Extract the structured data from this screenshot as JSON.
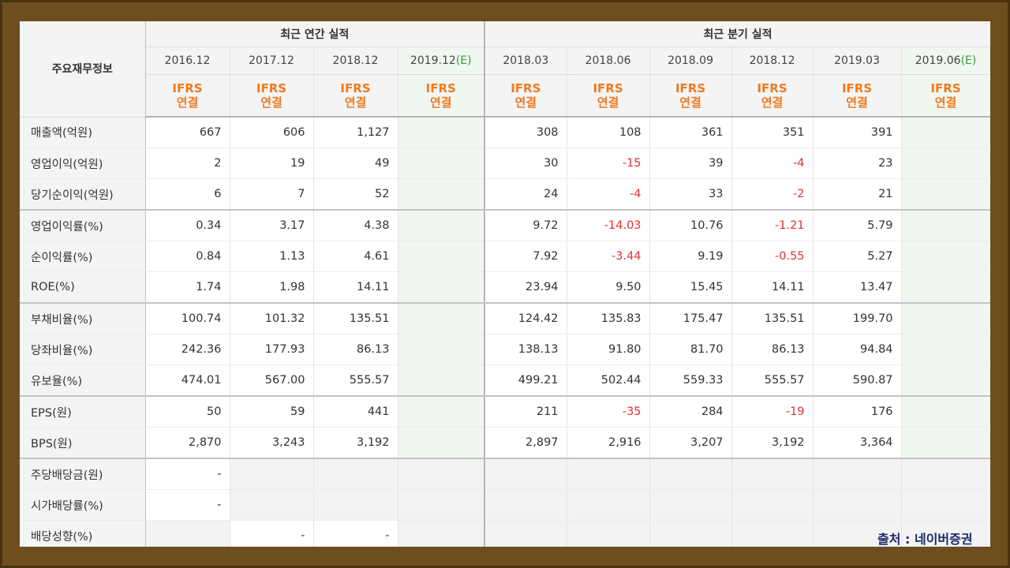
{
  "table": {
    "corner_label": "주요재무정보",
    "annual_header": "최근 연간 실적",
    "quarter_header": "최근 분기 실적",
    "periods": [
      {
        "date": "2016.12",
        "est": "",
        "ifrs": "IFRS",
        "basis": "연결",
        "kind": "annual"
      },
      {
        "date": "2017.12",
        "est": "",
        "ifrs": "IFRS",
        "basis": "연결",
        "kind": "annual"
      },
      {
        "date": "2018.12",
        "est": "",
        "ifrs": "IFRS",
        "basis": "연결",
        "kind": "annual"
      },
      {
        "date": "2019.12",
        "est": "(E)",
        "ifrs": "IFRS",
        "basis": "연결",
        "kind": "annual-est"
      },
      {
        "date": "2018.03",
        "est": "",
        "ifrs": "IFRS",
        "basis": "연결",
        "kind": "quarter"
      },
      {
        "date": "2018.06",
        "est": "",
        "ifrs": "IFRS",
        "basis": "연결",
        "kind": "quarter"
      },
      {
        "date": "2018.09",
        "est": "",
        "ifrs": "IFRS",
        "basis": "연결",
        "kind": "quarter"
      },
      {
        "date": "2018.12",
        "est": "",
        "ifrs": "IFRS",
        "basis": "연결",
        "kind": "quarter"
      },
      {
        "date": "2019.03",
        "est": "",
        "ifrs": "IFRS",
        "basis": "연결",
        "kind": "quarter"
      },
      {
        "date": "2019.06",
        "est": "(E)",
        "ifrs": "IFRS",
        "basis": "연결",
        "kind": "quarter-est"
      }
    ],
    "rows": [
      {
        "label": "매출액(억원)",
        "values": [
          "667",
          "606",
          "1,127",
          "",
          "308",
          "108",
          "361",
          "351",
          "391",
          ""
        ]
      },
      {
        "label": "영업이익(억원)",
        "values": [
          "2",
          "19",
          "49",
          "",
          "30",
          "-15",
          "39",
          "-4",
          "23",
          ""
        ]
      },
      {
        "label": "당기순이익(억원)",
        "values": [
          "6",
          "7",
          "52",
          "",
          "24",
          "-4",
          "33",
          "-2",
          "21",
          ""
        ]
      },
      {
        "label": "영업이익률(%)",
        "values": [
          "0.34",
          "3.17",
          "4.38",
          "",
          "9.72",
          "-14.03",
          "10.76",
          "-1.21",
          "5.79",
          ""
        ]
      },
      {
        "label": "순이익률(%)",
        "values": [
          "0.84",
          "1.13",
          "4.61",
          "",
          "7.92",
          "-3.44",
          "9.19",
          "-0.55",
          "5.27",
          ""
        ]
      },
      {
        "label": "ROE(%)",
        "values": [
          "1.74",
          "1.98",
          "14.11",
          "",
          "23.94",
          "9.50",
          "15.45",
          "14.11",
          "13.47",
          ""
        ]
      },
      {
        "label": "부채비율(%)",
        "values": [
          "100.74",
          "101.32",
          "135.51",
          "",
          "124.42",
          "135.83",
          "175.47",
          "135.51",
          "199.70",
          ""
        ]
      },
      {
        "label": "당좌비율(%)",
        "values": [
          "242.36",
          "177.93",
          "86.13",
          "",
          "138.13",
          "91.80",
          "81.70",
          "86.13",
          "94.84",
          ""
        ]
      },
      {
        "label": "유보율(%)",
        "values": [
          "474.01",
          "567.00",
          "555.57",
          "",
          "499.21",
          "502.44",
          "559.33",
          "555.57",
          "590.87",
          ""
        ]
      },
      {
        "label": "EPS(원)",
        "values": [
          "50",
          "59",
          "441",
          "",
          "211",
          "-35",
          "284",
          "-19",
          "176",
          ""
        ]
      },
      {
        "label": "BPS(원)",
        "values": [
          "2,870",
          "3,243",
          "3,192",
          "",
          "2,897",
          "2,916",
          "3,207",
          "3,192",
          "3,364",
          ""
        ]
      },
      {
        "label": "주당배당금(원)",
        "values": [
          "-",
          "",
          "",
          "",
          "",
          "",
          "",
          "",
          "",
          ""
        ]
      },
      {
        "label": "시가배당률(%)",
        "values": [
          "-",
          "",
          "",
          "",
          "",
          "",
          "",
          "",
          "",
          ""
        ]
      },
      {
        "label": "배당성향(%)",
        "values": [
          "",
          "-",
          "-",
          "",
          "",
          "",
          "",
          "",
          "",
          ""
        ]
      }
    ],
    "group_ends": [
      2,
      5,
      8,
      10
    ],
    "grey_cells": {
      "11": [
        1,
        2,
        3,
        4,
        5,
        6,
        7,
        8,
        9
      ],
      "12": [
        1,
        2,
        3,
        4,
        5,
        6,
        7,
        8,
        9
      ],
      "13": [
        0,
        3,
        4,
        5,
        6,
        7,
        8,
        9
      ]
    }
  },
  "source_note": "출처 : 네이버증권",
  "colors": {
    "frame": "#6e4e1e",
    "ifrs_text": "#f07a1e",
    "negative": "#e03030",
    "estimate_bg": "#f0f7f0",
    "estimate_mark": "#3a9a3a"
  }
}
